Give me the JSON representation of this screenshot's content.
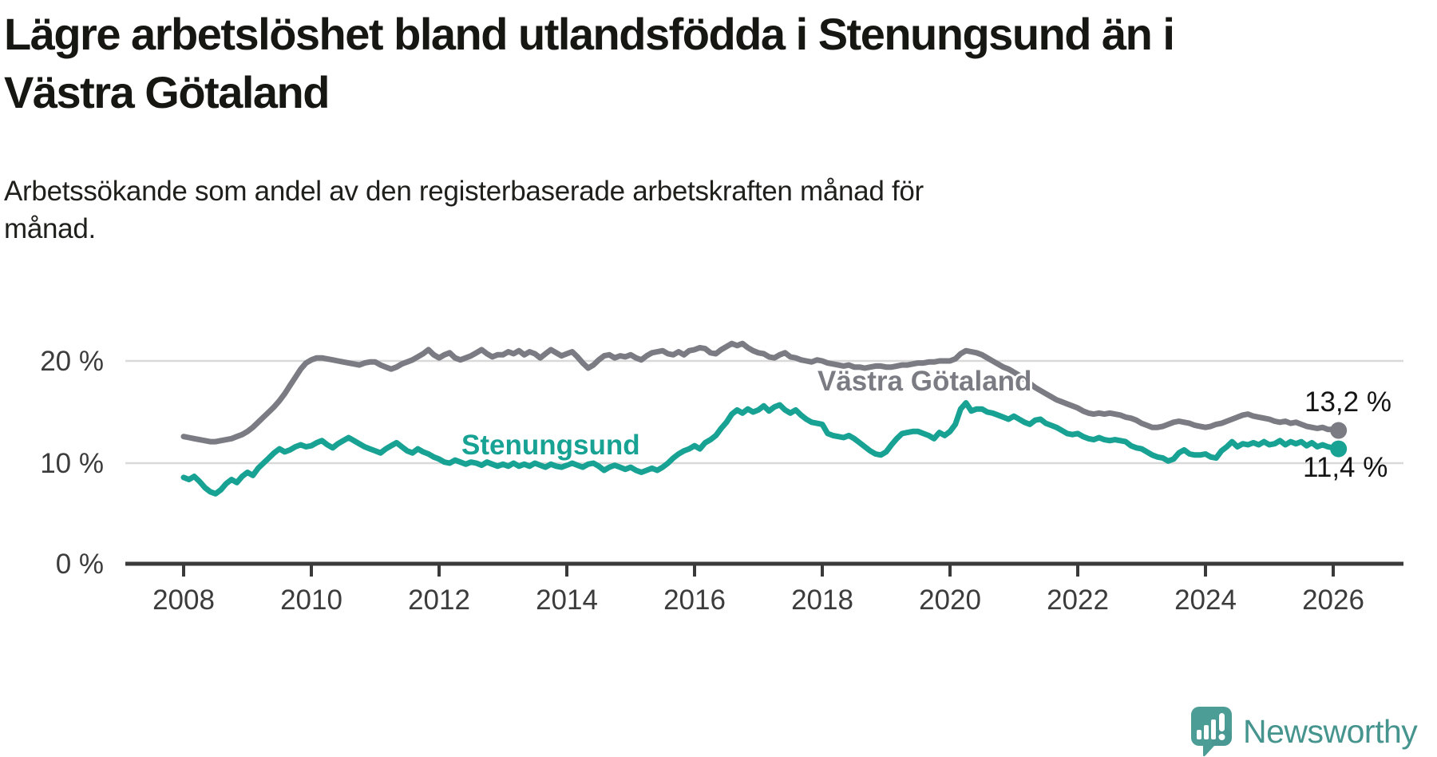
{
  "header": {
    "title_lines": [
      "Lägre arbetslöshet bland utlandsfödda i Stenungsund än i",
      "Västra Götaland"
    ],
    "subtitle_lines": [
      "Arbetssökande som andel av den registerbaserade arbetskraften månad för",
      "månad."
    ]
  },
  "chart_data": {
    "type": "line",
    "title": "Lägre arbetslöshet bland utlandsfödda i Stenungsund än i Västra Götaland",
    "subtitle": "Arbetssökande som andel av den registerbaserade arbetskraften månad för månad.",
    "unit": "%",
    "x_start": "2008-01",
    "x_end": "2026-02",
    "x_ticks": [
      {
        "label": "2008",
        "year": 2008
      },
      {
        "label": "2010",
        "year": 2010
      },
      {
        "label": "2012",
        "year": 2012
      },
      {
        "label": "2014",
        "year": 2014
      },
      {
        "label": "2016",
        "year": 2016
      },
      {
        "label": "2018",
        "year": 2018
      },
      {
        "label": "2020",
        "year": 2020
      },
      {
        "label": "2022",
        "year": 2022
      },
      {
        "label": "2024",
        "year": 2024
      },
      {
        "label": "2026",
        "year": 2026
      }
    ],
    "y_ticks": [
      {
        "label": "20 %",
        "value": 20
      },
      {
        "label": "10 %",
        "value": 10
      },
      {
        "label": "0 %",
        "value": 0
      }
    ],
    "ylim": [
      0,
      23.5
    ],
    "grid": "horizontal",
    "legend_position": "inline-labels",
    "series": [
      {
        "name": "Västra Götaland",
        "color": "#7b7b83",
        "end_label": "13,2 %",
        "end_value": 13.2,
        "values": [
          12.6,
          12.5,
          12.4,
          12.3,
          12.2,
          12.1,
          12.1,
          12.2,
          12.3,
          12.4,
          12.6,
          12.8,
          13.1,
          13.5,
          14.0,
          14.5,
          15.0,
          15.5,
          16.1,
          16.8,
          17.6,
          18.4,
          19.2,
          19.8,
          20.1,
          20.3,
          20.3,
          20.2,
          20.1,
          20.0,
          19.9,
          19.8,
          19.7,
          19.6,
          19.8,
          19.9,
          19.9,
          19.6,
          19.4,
          19.2,
          19.4,
          19.7,
          19.9,
          20.1,
          20.4,
          20.7,
          21.1,
          20.6,
          20.3,
          20.6,
          20.8,
          20.3,
          20.1,
          20.3,
          20.5,
          20.8,
          21.1,
          20.7,
          20.4,
          20.6,
          20.6,
          20.9,
          20.7,
          21.0,
          20.6,
          20.9,
          20.7,
          20.3,
          20.7,
          21.1,
          20.8,
          20.5,
          20.7,
          20.9,
          20.4,
          19.8,
          19.3,
          19.6,
          20.1,
          20.5,
          20.6,
          20.3,
          20.5,
          20.4,
          20.6,
          20.3,
          20.1,
          20.5,
          20.8,
          20.9,
          21.0,
          20.7,
          20.6,
          20.9,
          20.6,
          21.0,
          21.1,
          21.3,
          21.2,
          20.8,
          20.7,
          21.1,
          21.4,
          21.7,
          21.5,
          21.7,
          21.3,
          21.0,
          20.8,
          20.7,
          20.4,
          20.3,
          20.6,
          20.8,
          20.4,
          20.3,
          20.1,
          20.0,
          19.9,
          20.1,
          20.0,
          19.8,
          19.7,
          19.6,
          19.5,
          19.6,
          19.4,
          19.4,
          19.3,
          19.4,
          19.5,
          19.5,
          19.4,
          19.4,
          19.5,
          19.6,
          19.6,
          19.7,
          19.8,
          19.8,
          19.9,
          19.9,
          20.0,
          20.0,
          20.0,
          20.2,
          20.7,
          21.0,
          20.9,
          20.8,
          20.6,
          20.3,
          20.0,
          19.7,
          19.4,
          19.2,
          18.9,
          18.6,
          18.2,
          17.8,
          17.4,
          17.1,
          16.8,
          16.5,
          16.2,
          16.0,
          15.8,
          15.6,
          15.4,
          15.1,
          14.9,
          14.8,
          14.9,
          14.8,
          14.9,
          14.8,
          14.7,
          14.5,
          14.4,
          14.2,
          13.9,
          13.7,
          13.5,
          13.5,
          13.6,
          13.8,
          14.0,
          14.1,
          14.0,
          13.9,
          13.7,
          13.6,
          13.5,
          13.6,
          13.8,
          13.9,
          14.1,
          14.3,
          14.5,
          14.7,
          14.8,
          14.6,
          14.5,
          14.4,
          14.3,
          14.1,
          14.0,
          14.1,
          13.9,
          14.0,
          13.8,
          13.6,
          13.5,
          13.4,
          13.5,
          13.3,
          13.3,
          13.2
        ]
      },
      {
        "name": "Stenungsund",
        "color": "#17a294",
        "end_label": "11,4 %",
        "end_value": 11.4,
        "values": [
          8.6,
          8.4,
          8.7,
          8.2,
          7.6,
          7.2,
          7.0,
          7.4,
          8.0,
          8.4,
          8.1,
          8.7,
          9.1,
          8.8,
          9.5,
          10.0,
          10.5,
          11.0,
          11.4,
          11.1,
          11.3,
          11.6,
          11.8,
          11.6,
          11.7,
          12.0,
          12.2,
          11.8,
          11.5,
          11.9,
          12.2,
          12.5,
          12.2,
          11.9,
          11.6,
          11.4,
          11.2,
          11.0,
          11.4,
          11.7,
          12.0,
          11.6,
          11.2,
          11.0,
          11.4,
          11.1,
          10.9,
          10.6,
          10.4,
          10.1,
          10.0,
          10.3,
          10.1,
          9.9,
          10.1,
          10.0,
          9.8,
          10.1,
          9.9,
          9.7,
          9.9,
          9.7,
          10.0,
          9.7,
          9.9,
          9.7,
          10.0,
          9.8,
          9.6,
          9.9,
          9.7,
          9.6,
          9.8,
          10.0,
          9.8,
          9.6,
          9.9,
          10.0,
          9.7,
          9.3,
          9.6,
          9.8,
          9.6,
          9.4,
          9.6,
          9.3,
          9.1,
          9.3,
          9.5,
          9.3,
          9.6,
          10.0,
          10.5,
          10.9,
          11.2,
          11.4,
          11.7,
          11.4,
          12.0,
          12.3,
          12.7,
          13.4,
          14.0,
          14.8,
          15.2,
          14.9,
          15.3,
          15.0,
          15.2,
          15.6,
          15.1,
          15.5,
          15.7,
          15.2,
          14.9,
          15.2,
          14.7,
          14.3,
          14.0,
          13.9,
          13.8,
          12.9,
          12.7,
          12.6,
          12.5,
          12.7,
          12.4,
          12.0,
          11.6,
          11.2,
          10.9,
          10.8,
          11.1,
          11.8,
          12.4,
          12.9,
          13.0,
          13.1,
          13.1,
          12.9,
          12.7,
          12.4,
          13.0,
          12.7,
          13.1,
          13.8,
          15.3,
          15.9,
          15.1,
          15.3,
          15.3,
          15.0,
          14.9,
          14.7,
          14.5,
          14.3,
          14.6,
          14.3,
          14.0,
          13.8,
          14.2,
          14.3,
          13.9,
          13.7,
          13.5,
          13.2,
          12.9,
          12.8,
          12.9,
          12.6,
          12.4,
          12.3,
          12.5,
          12.3,
          12.2,
          12.3,
          12.2,
          12.1,
          11.7,
          11.5,
          11.4,
          11.1,
          10.8,
          10.6,
          10.5,
          10.2,
          10.4,
          11.0,
          11.3,
          10.9,
          10.8,
          10.8,
          10.9,
          10.6,
          10.5,
          11.2,
          11.6,
          12.1,
          11.6,
          11.9,
          11.8,
          12.0,
          11.8,
          12.1,
          11.8,
          11.9,
          12.2,
          11.8,
          12.1,
          11.9,
          12.1,
          11.7,
          12.0,
          11.6,
          11.8,
          11.6,
          11.5,
          11.4
        ]
      }
    ],
    "colors": {
      "grid": "#d9d9d9",
      "axis": "#3a3a3a",
      "tick_text": "#3c3c3c",
      "value_label_text": "#141414"
    }
  },
  "branding": {
    "logo_text": "Newsworthy",
    "logo_text_color": "#45948e",
    "logo_bubble_color": "#4d9d97",
    "logo_bubble_shade": "#3e8c86"
  }
}
